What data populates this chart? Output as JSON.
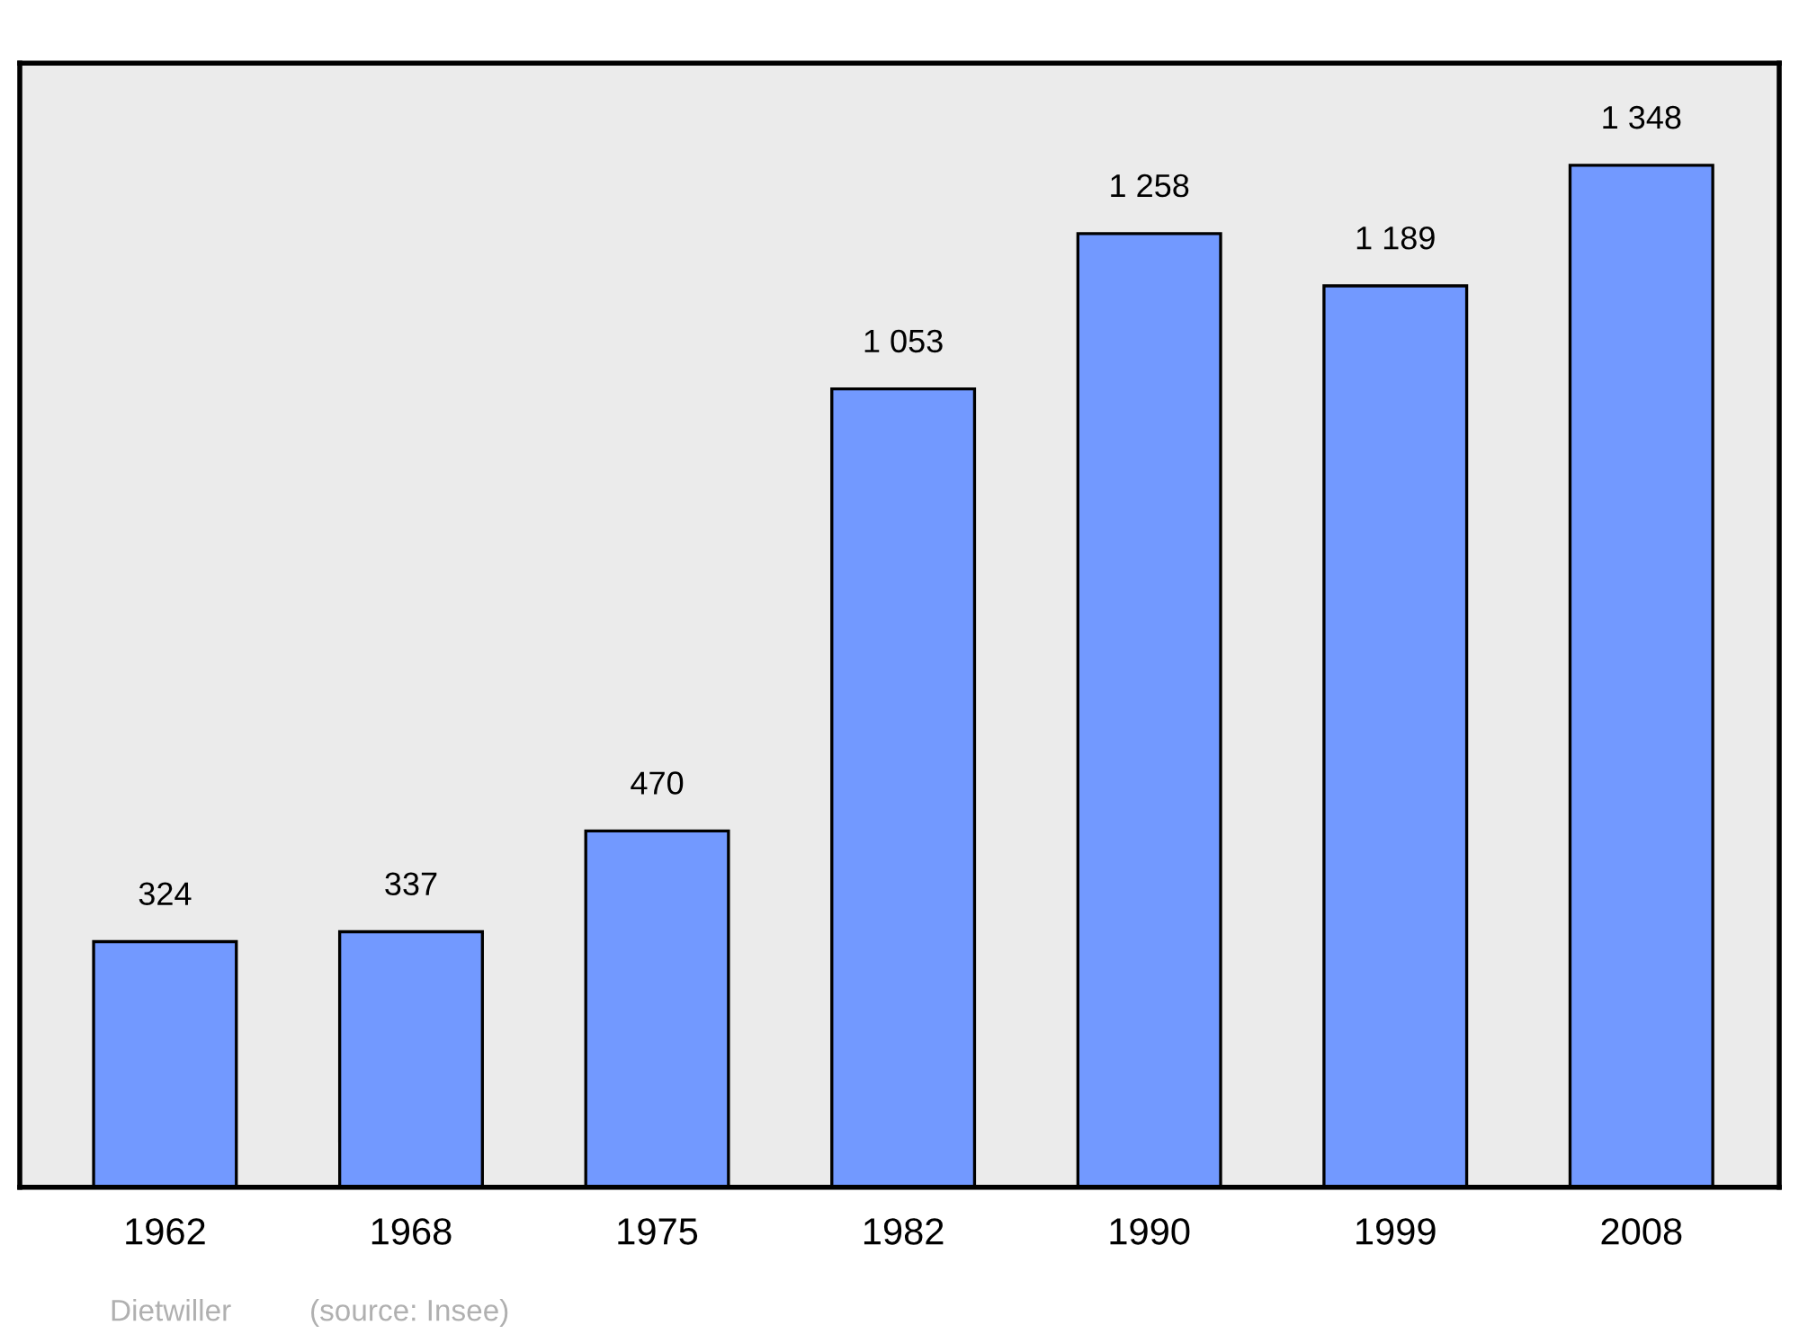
{
  "chart_data": {
    "type": "bar",
    "categories": [
      "1962",
      "1968",
      "1975",
      "1982",
      "1990",
      "1999",
      "2008"
    ],
    "values": [
      324,
      337,
      470,
      1053,
      1258,
      1189,
      1348
    ],
    "value_labels": [
      "324",
      "337",
      "470",
      "1 053",
      "1 258",
      "1 189",
      "1 348"
    ],
    "color": "#7299ff",
    "grid": false,
    "legend": false,
    "tick_labels": "x",
    "annotations": [
      "Dietwiller",
      "(source: Insee)"
    ]
  }
}
